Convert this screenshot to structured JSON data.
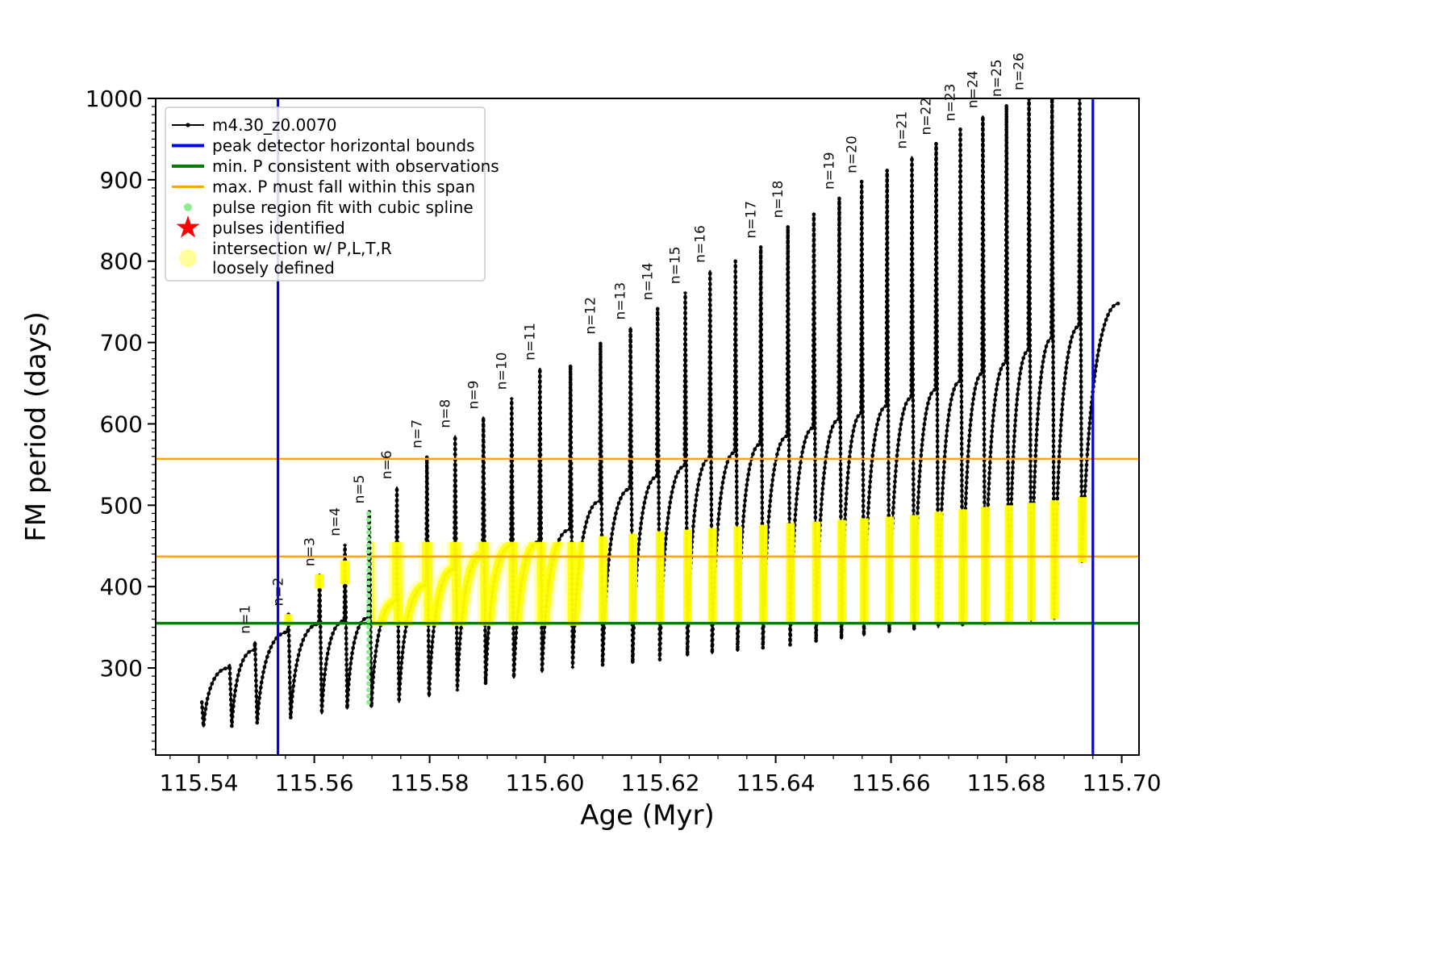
{
  "chart_data": {
    "type": "line",
    "title": "",
    "xlabel": "Age (Myr)",
    "ylabel": "FM period (days)",
    "series_label": "m4.30_z0.0070",
    "xlim": [
      115.5325,
      115.703
    ],
    "ylim": [
      193,
      1000
    ],
    "xticks": [
      115.54,
      115.56,
      115.58,
      115.6,
      115.62,
      115.64,
      115.66,
      115.68,
      115.7
    ],
    "xtick_labels": [
      "115.54",
      "115.56",
      "115.58",
      "115.60",
      "115.62",
      "115.64",
      "115.66",
      "115.68",
      "115.70"
    ],
    "yticks": [
      300,
      400,
      500,
      600,
      700,
      800,
      900,
      1000
    ],
    "ytick_labels": [
      "300",
      "400",
      "500",
      "600",
      "700",
      "800",
      "900",
      "1000"
    ],
    "x_minor_step": 0.005,
    "y_minor_step": 10,
    "grid": false,
    "legend_position": "upper-left",
    "colors": {
      "series": "#000000",
      "blue": "#0000ff",
      "green": "#008000",
      "orange": "#ffa500",
      "lightgreen": "#90ee90",
      "red": "#ff0000",
      "yellow": "#ffff00",
      "yellow_halo": "#ffff66"
    },
    "vlines": [
      115.5537,
      115.695
    ],
    "hlines": [
      {
        "y": 355,
        "color": "#008000",
        "lw": 3.5,
        "name": "min-P-consistent"
      },
      {
        "y": 437,
        "color": "#ffa500",
        "lw": 2.5,
        "name": "max-P-span-lower"
      },
      {
        "y": 557,
        "color": "#ffa500",
        "lw": 2.5,
        "name": "max-P-span-upper"
      }
    ],
    "start": {
      "x": 115.5405,
      "y": 258,
      "y2": 228
    },
    "end": {
      "x": 115.6995,
      "y": 748
    },
    "green_spline": {
      "x": 115.5694,
      "y0": 252,
      "y1": 490
    },
    "pulses": [
      {
        "x": 115.5452,
        "pre": 300,
        "top": 304,
        "dip": 228,
        "label": ""
      },
      {
        "x": 115.5496,
        "pre": 322,
        "top": 332,
        "dip": 232,
        "label": "n=1"
      },
      {
        "x": 115.5554,
        "pre": 344,
        "top": 366,
        "dip": 238,
        "label": "n=2"
      },
      {
        "x": 115.5608,
        "pre": 354,
        "top": 415,
        "dip": 244,
        "label": "n=3"
      },
      {
        "x": 115.5652,
        "pre": 358,
        "top": 452,
        "dip": 250,
        "label": "n=4"
      },
      {
        "x": 115.5694,
        "pre": 362,
        "top": 492,
        "dip": 252,
        "label": "n=5"
      },
      {
        "x": 115.5742,
        "pre": 382,
        "top": 522,
        "dip": 258,
        "label": "n=6"
      },
      {
        "x": 115.5794,
        "pre": 402,
        "top": 560,
        "dip": 265,
        "label": "n=7"
      },
      {
        "x": 115.5843,
        "pre": 422,
        "top": 585,
        "dip": 272,
        "label": "n=8"
      },
      {
        "x": 115.5892,
        "pre": 440,
        "top": 608,
        "dip": 280,
        "label": "n=9"
      },
      {
        "x": 115.5941,
        "pre": 450,
        "top": 632,
        "dip": 288,
        "label": "n=10"
      },
      {
        "x": 115.599,
        "pre": 455,
        "top": 668,
        "dip": 295,
        "label": "n=11"
      },
      {
        "x": 115.6043,
        "pre": 470,
        "top": 672,
        "dip": 300,
        "label": ""
      },
      {
        "x": 115.6095,
        "pre": 505,
        "top": 700,
        "dip": 303,
        "label": "n=12",
        "ycap": 462
      },
      {
        "x": 115.6147,
        "pre": 520,
        "top": 718,
        "dip": 306,
        "label": "n=13",
        "ycap": 465
      },
      {
        "x": 115.6194,
        "pre": 535,
        "top": 742,
        "dip": 310,
        "label": "n=14",
        "ycap": 468
      },
      {
        "x": 115.6242,
        "pre": 548,
        "top": 762,
        "dip": 315,
        "label": "n=15",
        "ycap": 470
      },
      {
        "x": 115.6285,
        "pre": 558,
        "top": 788,
        "dip": 318,
        "label": "n=16",
        "ycap": 472
      },
      {
        "x": 115.6329,
        "pre": 565,
        "top": 800,
        "dip": 321,
        "label": "",
        "ycap": 474
      },
      {
        "x": 115.6373,
        "pre": 575,
        "top": 818,
        "dip": 324,
        "label": "n=17",
        "ycap": 476
      },
      {
        "x": 115.642,
        "pre": 585,
        "top": 843,
        "dip": 328,
        "label": "n=18",
        "ycap": 478
      },
      {
        "x": 115.6465,
        "pre": 595,
        "top": 858,
        "dip": 332,
        "label": "",
        "ycap": 480
      },
      {
        "x": 115.6509,
        "pre": 605,
        "top": 878,
        "dip": 336,
        "label": "n=19",
        "ycap": 482
      },
      {
        "x": 115.6548,
        "pre": 612,
        "top": 898,
        "dip": 340,
        "label": "n=20",
        "ycap": 484
      },
      {
        "x": 115.6592,
        "pre": 622,
        "top": 912,
        "dip": 344,
        "label": "",
        "ycap": 486
      },
      {
        "x": 115.6635,
        "pre": 632,
        "top": 928,
        "dip": 347,
        "label": "n=21",
        "ycap": 488
      },
      {
        "x": 115.6677,
        "pre": 642,
        "top": 945,
        "dip": 350,
        "label": "n=22",
        "ycap": 492
      },
      {
        "x": 115.6719,
        "pre": 652,
        "top": 962,
        "dip": 352,
        "label": "n=23",
        "ycap": 495
      },
      {
        "x": 115.6758,
        "pre": 662,
        "top": 978,
        "dip": 354,
        "label": "n=24",
        "ycap": 498
      },
      {
        "x": 115.6799,
        "pre": 675,
        "top": 992,
        "dip": 356,
        "label": "n=25",
        "ycap": 500
      },
      {
        "x": 115.6838,
        "pre": 690,
        "top": 1000,
        "dip": 358,
        "label": "n=26",
        "ycap": 503
      },
      {
        "x": 115.6878,
        "pre": 705,
        "top": 1000,
        "dip": 360,
        "label": "",
        "ycap": 506
      },
      {
        "x": 115.6926,
        "pre": 720,
        "top": 1000,
        "dip": 430,
        "label": "",
        "ycap": 510
      }
    ],
    "yellow_regions": [
      {
        "x0": 115.57,
        "x1": 115.6068,
        "y0": 352,
        "y1": 455
      },
      {
        "x0": 115.5548,
        "x1": 115.5562,
        "y0": 352,
        "y1": 368
      },
      {
        "x0": 115.56,
        "x1": 115.5616,
        "y0": 398,
        "y1": 418
      },
      {
        "x0": 115.5645,
        "x1": 115.5661,
        "y0": 403,
        "y1": 432
      }
    ],
    "yellow_spike_base": 356,
    "legend": [
      {
        "type": "line-dot",
        "color": "#000000",
        "lw": 2,
        "label": "m4.30_z0.0070"
      },
      {
        "type": "line",
        "color": "#0000ff",
        "lw": 4,
        "label": "peak detector horizontal bounds"
      },
      {
        "type": "line",
        "color": "#008000",
        "lw": 4,
        "label": "min. P consistent with observations"
      },
      {
        "type": "line",
        "color": "#ffa500",
        "lw": 3,
        "label": "max. P must fall within this span"
      },
      {
        "type": "dot",
        "color": "#90ee90",
        "label": "pulse region fit with cubic spline"
      },
      {
        "type": "star",
        "color": "#ff0000",
        "label": "pulses identified"
      },
      {
        "type": "bigdot",
        "color": "#ffff88",
        "label": "intersection w/ P,L,T,R",
        "label2": "loosely defined"
      }
    ]
  }
}
